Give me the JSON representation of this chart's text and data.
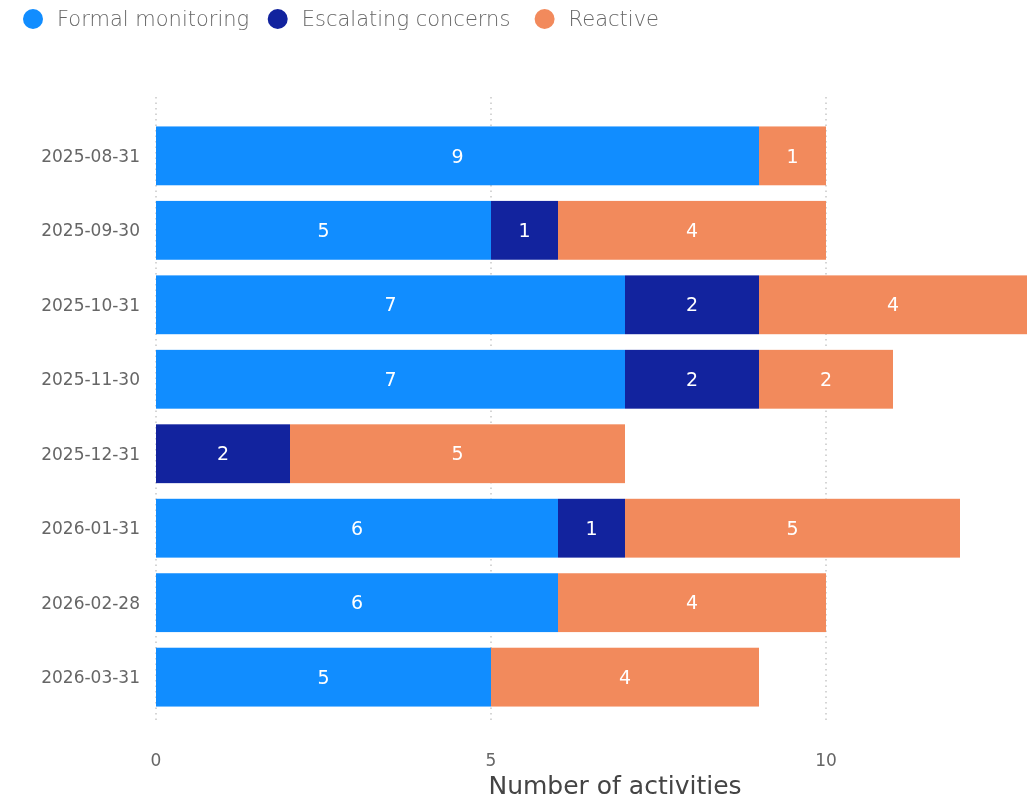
{
  "chart_data": {
    "type": "bar",
    "orientation": "horizontal",
    "stacked": true,
    "xlabel": "Number of activities",
    "categories": [
      "2025-08-31",
      "2025-09-30",
      "2025-10-31",
      "2025-11-30",
      "2025-12-31",
      "2026-01-31",
      "2026-02-28",
      "2026-03-31"
    ],
    "series": [
      {
        "name": "Formal monitoring",
        "color": "#118dff",
        "values": [
          9,
          5,
          7,
          7,
          null,
          6,
          6,
          5
        ]
      },
      {
        "name": "Escalating concerns",
        "color": "#12239e",
        "values": [
          null,
          1,
          2,
          2,
          2,
          1,
          null,
          null
        ]
      },
      {
        "name": "Reactive",
        "color": "#f28a5c",
        "values": [
          1,
          4,
          4,
          2,
          5,
          5,
          4,
          4
        ]
      }
    ],
    "xlim": [
      0,
      13
    ],
    "xticks": [
      0,
      5,
      10
    ],
    "grid": "x",
    "legend": "top left",
    "data_labels": true
  }
}
